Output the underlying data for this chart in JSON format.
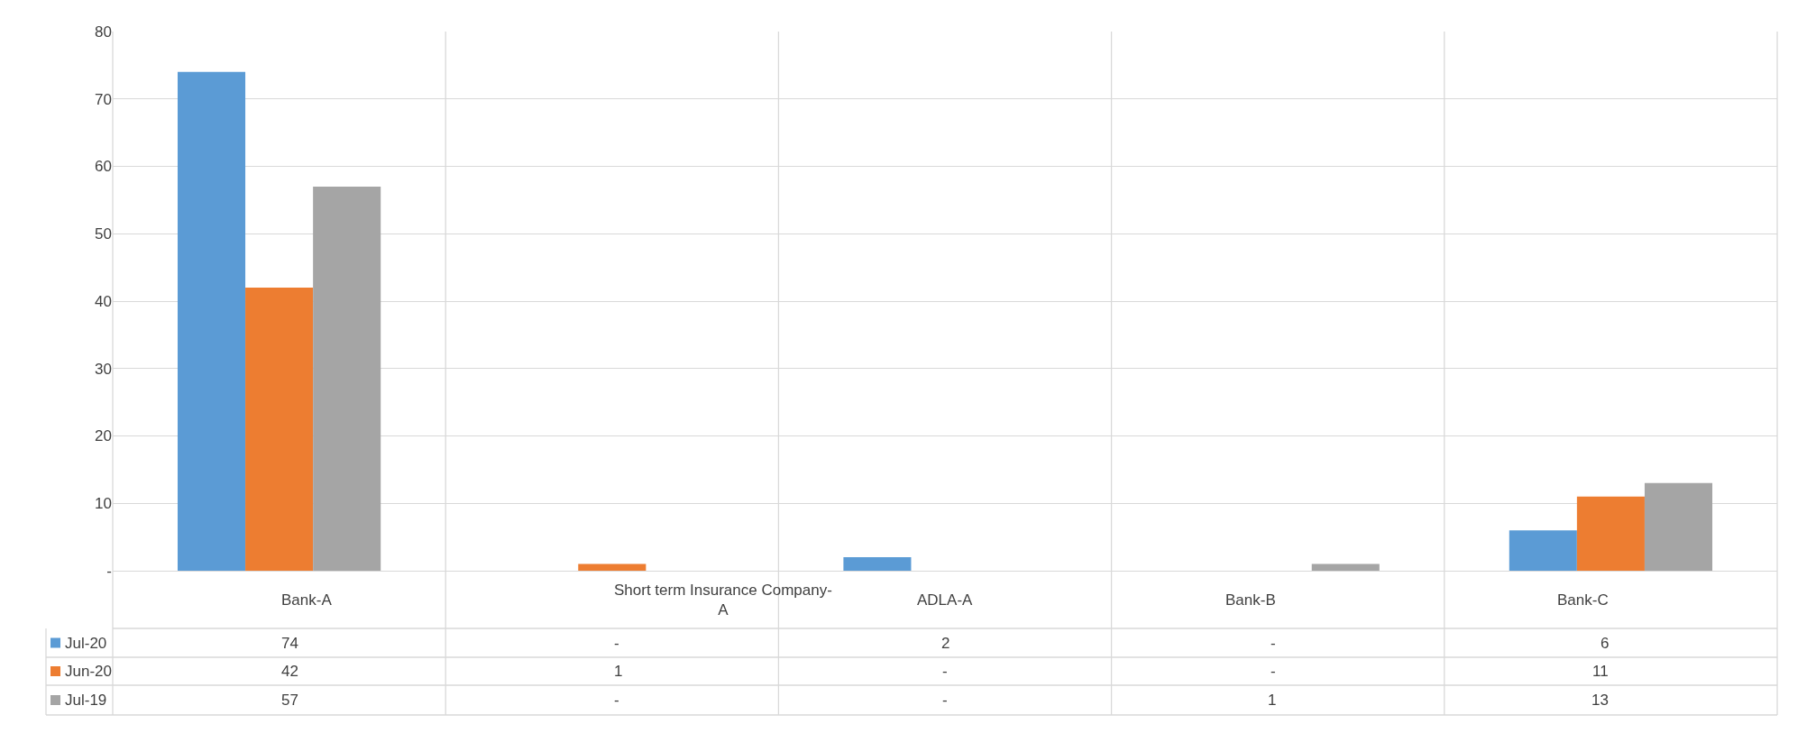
{
  "chart_data": {
    "type": "bar",
    "categories": [
      "Bank-A",
      "Short term Insurance Company-A",
      "ADLA-A",
      "Bank-B",
      "Bank-C"
    ],
    "series": [
      {
        "name": "Jul-20",
        "color": "#5b9bd5",
        "values": [
          74,
          0,
          2,
          0,
          6
        ],
        "value_labels": [
          "74",
          "-",
          "2",
          "-",
          "6"
        ]
      },
      {
        "name": "Jun-20",
        "color": "#ed7d31",
        "values": [
          42,
          1,
          0,
          0,
          11
        ],
        "value_labels": [
          "42",
          "1",
          "-",
          "-",
          "11"
        ]
      },
      {
        "name": "Jul-19",
        "color": "#a5a5a5",
        "values": [
          57,
          0,
          0,
          1,
          13
        ],
        "value_labels": [
          "57",
          "-",
          "-",
          "1",
          "13"
        ]
      }
    ],
    "ylim": [
      0,
      80
    ],
    "yticks": [
      {
        "value": 0,
        "label": "-"
      },
      10,
      20,
      30,
      40,
      50,
      60,
      70,
      80
    ],
    "grid": "y",
    "legend": "bottom"
  }
}
